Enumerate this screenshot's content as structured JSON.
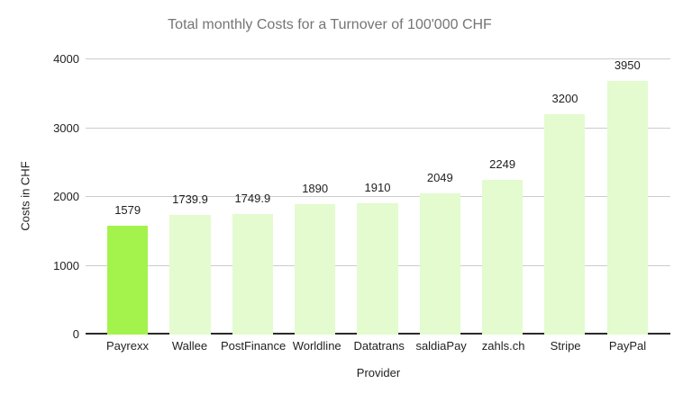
{
  "chart_data": {
    "type": "bar",
    "title": "Total monthly Costs for a Turnover of 100'000 CHF",
    "xlabel": "Provider",
    "ylabel": "Costs in CHF",
    "categories": [
      "Payrexx",
      "Wallee",
      "PostFinance",
      "Worldline",
      "Datatrans",
      "saldiaPay",
      "zahls.ch",
      "Stripe",
      "PayPal"
    ],
    "values": [
      1579,
      1739.9,
      1749.9,
      1890,
      1910,
      2049,
      2249,
      3200,
      3950
    ],
    "value_labels": [
      "1579",
      "1739.9",
      "1749.9",
      "1890",
      "1910",
      "2049",
      "2249",
      "3200",
      "3950"
    ],
    "ylim": [
      0,
      4000
    ],
    "yticks": [
      0,
      1000,
      2000,
      3000,
      4000
    ],
    "ytick_labels": [
      "0",
      "1000",
      "2000",
      "3000",
      "4000"
    ],
    "grid": true,
    "legend": "none",
    "highlight_index": 0,
    "colors": {
      "highlight_bar": "#a4f34d",
      "bar": "#e3fbce",
      "gridline": "#cccccc",
      "baseline": "#2b2b2b",
      "title_text": "#757575",
      "label_text": "#1f1f1f",
      "background": "#ffffff"
    }
  }
}
